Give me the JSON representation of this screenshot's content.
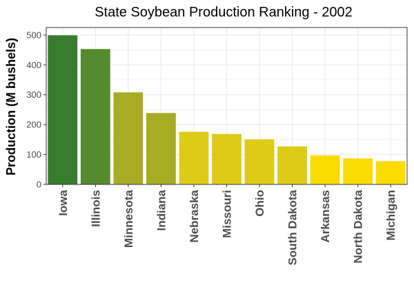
{
  "chart_data": {
    "type": "bar",
    "title": "State Soybean Production Ranking - 2002",
    "xlabel": "",
    "ylabel": "Production (M bushels)",
    "categories": [
      "Iowa",
      "Illinois",
      "Minnesota",
      "Indiana",
      "Nebraska",
      "Missouri",
      "Ohio",
      "South Dakota",
      "Arkansas",
      "North Dakota",
      "Michigan"
    ],
    "values": [
      499,
      453,
      308,
      239,
      176,
      169,
      151,
      127,
      97,
      87,
      78
    ],
    "colors": [
      "#387c2d",
      "#568a2e",
      "#a8ac24",
      "#a8ac24",
      "#ddcb18",
      "#ddcb18",
      "#ddcb18",
      "#ddcb18",
      "#fcdc00",
      "#fcdc00",
      "#fcdc00"
    ],
    "ylim": [
      0,
      525
    ],
    "yticks": [
      0,
      100,
      200,
      300,
      400,
      500
    ],
    "grid": true,
    "legend": "none",
    "panel_border_color": "#333333",
    "grid_color": "#ebebeb"
  }
}
